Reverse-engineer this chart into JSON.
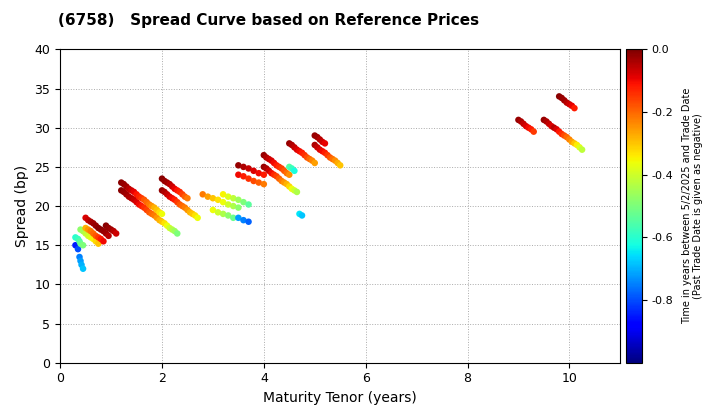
{
  "title": "(6758)   Spread Curve based on Reference Prices",
  "xlabel": "Maturity Tenor (years)",
  "ylabel": "Spread (bp)",
  "colorbar_label": "Time in years between 5/2/2025 and Trade Date\n(Past Trade Date is given as negative)",
  "xlim": [
    0,
    11
  ],
  "ylim": [
    0,
    40
  ],
  "xticks": [
    0,
    2,
    4,
    6,
    8,
    10
  ],
  "yticks": [
    0,
    5,
    10,
    15,
    20,
    25,
    30,
    35,
    40
  ],
  "colorbar_ticks": [
    0.0,
    -0.2,
    -0.4,
    -0.6,
    -0.8
  ],
  "vmin": -1.0,
  "vmax": 0.0,
  "background_color": "#ffffff",
  "point_size": 22,
  "points": [
    [
      0.3,
      15.0,
      -0.85
    ],
    [
      0.35,
      14.5,
      -0.8
    ],
    [
      0.38,
      13.5,
      -0.75
    ],
    [
      0.4,
      13.0,
      -0.72
    ],
    [
      0.42,
      12.5,
      -0.7
    ],
    [
      0.45,
      12.0,
      -0.68
    ],
    [
      0.3,
      16.0,
      -0.6
    ],
    [
      0.35,
      15.8,
      -0.58
    ],
    [
      0.38,
      15.5,
      -0.55
    ],
    [
      0.4,
      15.2,
      -0.52
    ],
    [
      0.45,
      15.0,
      -0.5
    ],
    [
      0.4,
      17.0,
      -0.48
    ],
    [
      0.45,
      16.8,
      -0.45
    ],
    [
      0.5,
      16.5,
      -0.42
    ],
    [
      0.55,
      16.2,
      -0.4
    ],
    [
      0.6,
      16.0,
      -0.38
    ],
    [
      0.65,
      15.8,
      -0.35
    ],
    [
      0.7,
      15.5,
      -0.32
    ],
    [
      0.75,
      15.2,
      -0.3
    ],
    [
      0.5,
      17.2,
      -0.28
    ],
    [
      0.55,
      17.0,
      -0.25
    ],
    [
      0.6,
      16.8,
      -0.22
    ],
    [
      0.65,
      16.5,
      -0.2
    ],
    [
      0.7,
      16.2,
      -0.18
    ],
    [
      0.75,
      16.0,
      -0.15
    ],
    [
      0.8,
      15.8,
      -0.12
    ],
    [
      0.85,
      15.5,
      -0.1
    ],
    [
      0.5,
      18.5,
      -0.08
    ],
    [
      0.55,
      18.2,
      -0.06
    ],
    [
      0.6,
      18.0,
      -0.04
    ],
    [
      0.65,
      17.8,
      -0.03
    ],
    [
      0.7,
      17.5,
      -0.02
    ],
    [
      0.75,
      17.2,
      -0.01
    ],
    [
      0.8,
      17.0,
      -0.01
    ],
    [
      0.85,
      16.8,
      -0.02
    ],
    [
      0.9,
      16.5,
      -0.03
    ],
    [
      0.95,
      16.2,
      -0.05
    ],
    [
      0.9,
      17.5,
      -0.01
    ],
    [
      0.95,
      17.2,
      -0.02
    ],
    [
      1.0,
      17.0,
      -0.03
    ],
    [
      1.05,
      16.8,
      -0.05
    ],
    [
      1.1,
      16.5,
      -0.07
    ],
    [
      1.2,
      22.0,
      -0.01
    ],
    [
      1.25,
      21.8,
      -0.02
    ],
    [
      1.3,
      21.5,
      -0.03
    ],
    [
      1.35,
      21.2,
      -0.04
    ],
    [
      1.4,
      21.0,
      -0.05
    ],
    [
      1.45,
      20.8,
      -0.06
    ],
    [
      1.5,
      20.5,
      -0.08
    ],
    [
      1.55,
      20.2,
      -0.1
    ],
    [
      1.6,
      20.0,
      -0.12
    ],
    [
      1.65,
      19.8,
      -0.14
    ],
    [
      1.7,
      19.5,
      -0.16
    ],
    [
      1.75,
      19.2,
      -0.18
    ],
    [
      1.8,
      19.0,
      -0.2
    ],
    [
      1.85,
      18.8,
      -0.22
    ],
    [
      1.9,
      18.5,
      -0.25
    ],
    [
      1.95,
      18.2,
      -0.28
    ],
    [
      2.0,
      18.0,
      -0.3
    ],
    [
      2.05,
      17.8,
      -0.33
    ],
    [
      2.1,
      17.5,
      -0.36
    ],
    [
      2.15,
      17.2,
      -0.4
    ],
    [
      2.2,
      17.0,
      -0.43
    ],
    [
      2.25,
      16.8,
      -0.46
    ],
    [
      2.3,
      16.5,
      -0.5
    ],
    [
      1.2,
      23.0,
      -0.01
    ],
    [
      1.25,
      22.8,
      -0.02
    ],
    [
      1.3,
      22.5,
      -0.03
    ],
    [
      1.35,
      22.2,
      -0.05
    ],
    [
      1.4,
      22.0,
      -0.07
    ],
    [
      1.45,
      21.8,
      -0.09
    ],
    [
      1.5,
      21.5,
      -0.11
    ],
    [
      1.55,
      21.2,
      -0.13
    ],
    [
      1.6,
      21.0,
      -0.15
    ],
    [
      1.65,
      20.8,
      -0.18
    ],
    [
      1.7,
      20.5,
      -0.2
    ],
    [
      1.75,
      20.2,
      -0.22
    ],
    [
      1.8,
      20.0,
      -0.25
    ],
    [
      1.85,
      19.8,
      -0.28
    ],
    [
      1.9,
      19.5,
      -0.3
    ],
    [
      1.95,
      19.2,
      -0.33
    ],
    [
      2.0,
      19.0,
      -0.36
    ],
    [
      2.0,
      22.0,
      -0.02
    ],
    [
      2.05,
      21.8,
      -0.04
    ],
    [
      2.1,
      21.5,
      -0.06
    ],
    [
      2.15,
      21.2,
      -0.08
    ],
    [
      2.2,
      21.0,
      -0.1
    ],
    [
      2.25,
      20.8,
      -0.12
    ],
    [
      2.3,
      20.5,
      -0.15
    ],
    [
      2.35,
      20.2,
      -0.18
    ],
    [
      2.4,
      20.0,
      -0.2
    ],
    [
      2.45,
      19.8,
      -0.22
    ],
    [
      2.5,
      19.5,
      -0.25
    ],
    [
      2.55,
      19.2,
      -0.28
    ],
    [
      2.6,
      19.0,
      -0.3
    ],
    [
      2.65,
      18.8,
      -0.33
    ],
    [
      2.7,
      18.5,
      -0.36
    ],
    [
      2.0,
      23.5,
      -0.01
    ],
    [
      2.05,
      23.2,
      -0.02
    ],
    [
      2.1,
      23.0,
      -0.03
    ],
    [
      2.15,
      22.8,
      -0.05
    ],
    [
      2.2,
      22.5,
      -0.07
    ],
    [
      2.25,
      22.2,
      -0.09
    ],
    [
      2.3,
      22.0,
      -0.11
    ],
    [
      2.35,
      21.8,
      -0.13
    ],
    [
      2.4,
      21.5,
      -0.16
    ],
    [
      2.45,
      21.2,
      -0.19
    ],
    [
      2.5,
      21.0,
      -0.22
    ],
    [
      2.8,
      21.5,
      -0.22
    ],
    [
      2.9,
      21.2,
      -0.26
    ],
    [
      3.0,
      21.0,
      -0.3
    ],
    [
      3.1,
      20.8,
      -0.33
    ],
    [
      3.2,
      20.5,
      -0.36
    ],
    [
      3.3,
      20.2,
      -0.4
    ],
    [
      3.4,
      20.0,
      -0.44
    ],
    [
      3.5,
      19.8,
      -0.48
    ],
    [
      3.0,
      19.5,
      -0.36
    ],
    [
      3.1,
      19.2,
      -0.4
    ],
    [
      3.2,
      19.0,
      -0.44
    ],
    [
      3.3,
      18.8,
      -0.48
    ],
    [
      3.4,
      18.5,
      -0.52
    ],
    [
      3.2,
      21.5,
      -0.35
    ],
    [
      3.3,
      21.2,
      -0.38
    ],
    [
      3.4,
      21.0,
      -0.42
    ],
    [
      3.5,
      20.8,
      -0.46
    ],
    [
      3.6,
      20.5,
      -0.5
    ],
    [
      3.7,
      20.2,
      -0.54
    ],
    [
      3.5,
      24.0,
      -0.1
    ],
    [
      3.6,
      23.8,
      -0.12
    ],
    [
      3.7,
      23.5,
      -0.14
    ],
    [
      3.8,
      23.2,
      -0.17
    ],
    [
      3.9,
      23.0,
      -0.19
    ],
    [
      4.0,
      22.8,
      -0.22
    ],
    [
      3.5,
      25.2,
      -0.02
    ],
    [
      3.6,
      25.0,
      -0.04
    ],
    [
      3.7,
      24.8,
      -0.06
    ],
    [
      3.8,
      24.5,
      -0.08
    ],
    [
      3.9,
      24.2,
      -0.1
    ],
    [
      4.0,
      24.0,
      -0.12
    ],
    [
      4.0,
      26.5,
      -0.02
    ],
    [
      4.05,
      26.2,
      -0.04
    ],
    [
      4.1,
      26.0,
      -0.06
    ],
    [
      4.15,
      25.8,
      -0.08
    ],
    [
      4.2,
      25.5,
      -0.1
    ],
    [
      4.25,
      25.2,
      -0.12
    ],
    [
      4.3,
      25.0,
      -0.14
    ],
    [
      4.35,
      24.8,
      -0.16
    ],
    [
      4.4,
      24.5,
      -0.18
    ],
    [
      4.45,
      24.2,
      -0.21
    ],
    [
      4.5,
      24.0,
      -0.24
    ],
    [
      4.0,
      25.0,
      -0.02
    ],
    [
      4.05,
      24.8,
      -0.04
    ],
    [
      4.1,
      24.5,
      -0.07
    ],
    [
      4.15,
      24.2,
      -0.1
    ],
    [
      4.2,
      24.0,
      -0.13
    ],
    [
      4.25,
      23.8,
      -0.16
    ],
    [
      4.3,
      23.5,
      -0.19
    ],
    [
      4.35,
      23.2,
      -0.22
    ],
    [
      4.4,
      23.0,
      -0.25
    ],
    [
      4.45,
      22.8,
      -0.28
    ],
    [
      4.5,
      22.5,
      -0.32
    ],
    [
      4.55,
      22.2,
      -0.36
    ],
    [
      4.6,
      22.0,
      -0.4
    ],
    [
      4.65,
      21.8,
      -0.44
    ],
    [
      4.5,
      28.0,
      -0.02
    ],
    [
      4.55,
      27.8,
      -0.04
    ],
    [
      4.6,
      27.5,
      -0.06
    ],
    [
      4.65,
      27.2,
      -0.08
    ],
    [
      4.7,
      27.0,
      -0.1
    ],
    [
      4.75,
      26.8,
      -0.12
    ],
    [
      4.8,
      26.5,
      -0.14
    ],
    [
      4.85,
      26.2,
      -0.17
    ],
    [
      4.9,
      26.0,
      -0.2
    ],
    [
      4.95,
      25.8,
      -0.23
    ],
    [
      5.0,
      25.5,
      -0.26
    ],
    [
      5.0,
      27.8,
      -0.04
    ],
    [
      5.05,
      27.5,
      -0.06
    ],
    [
      5.1,
      27.2,
      -0.08
    ],
    [
      5.15,
      27.0,
      -0.1
    ],
    [
      5.2,
      26.8,
      -0.12
    ],
    [
      5.25,
      26.5,
      -0.15
    ],
    [
      5.3,
      26.2,
      -0.18
    ],
    [
      5.35,
      26.0,
      -0.21
    ],
    [
      5.4,
      25.8,
      -0.24
    ],
    [
      5.45,
      25.5,
      -0.27
    ],
    [
      5.5,
      25.2,
      -0.3
    ],
    [
      5.0,
      29.0,
      -0.02
    ],
    [
      5.05,
      28.8,
      -0.03
    ],
    [
      5.1,
      28.5,
      -0.05
    ],
    [
      5.15,
      28.2,
      -0.07
    ],
    [
      5.2,
      28.0,
      -0.09
    ],
    [
      4.5,
      25.0,
      -0.55
    ],
    [
      4.55,
      24.8,
      -0.58
    ],
    [
      4.6,
      24.5,
      -0.62
    ],
    [
      4.7,
      19.0,
      -0.65
    ],
    [
      4.75,
      18.8,
      -0.68
    ],
    [
      3.5,
      18.5,
      -0.72
    ],
    [
      3.6,
      18.2,
      -0.75
    ],
    [
      3.7,
      18.0,
      -0.78
    ],
    [
      9.0,
      31.0,
      -0.02
    ],
    [
      9.05,
      30.8,
      -0.04
    ],
    [
      9.1,
      30.5,
      -0.06
    ],
    [
      9.15,
      30.2,
      -0.08
    ],
    [
      9.2,
      30.0,
      -0.1
    ],
    [
      9.25,
      29.8,
      -0.12
    ],
    [
      9.3,
      29.5,
      -0.15
    ],
    [
      9.5,
      31.0,
      -0.02
    ],
    [
      9.55,
      30.8,
      -0.04
    ],
    [
      9.6,
      30.5,
      -0.06
    ],
    [
      9.65,
      30.2,
      -0.08
    ],
    [
      9.7,
      30.0,
      -0.05
    ],
    [
      9.75,
      29.8,
      -0.08
    ],
    [
      9.8,
      29.5,
      -0.11
    ],
    [
      9.85,
      29.2,
      -0.14
    ],
    [
      9.9,
      29.0,
      -0.17
    ],
    [
      9.95,
      28.8,
      -0.2
    ],
    [
      10.0,
      28.5,
      -0.23
    ],
    [
      10.05,
      28.2,
      -0.26
    ],
    [
      10.1,
      28.0,
      -0.3
    ],
    [
      10.15,
      27.8,
      -0.34
    ],
    [
      10.2,
      27.5,
      -0.38
    ],
    [
      10.25,
      27.2,
      -0.42
    ],
    [
      9.8,
      34.0,
      -0.01
    ],
    [
      9.85,
      33.8,
      -0.02
    ],
    [
      9.9,
      33.5,
      -0.03
    ],
    [
      9.95,
      33.2,
      -0.05
    ],
    [
      10.0,
      33.0,
      -0.07
    ],
    [
      10.05,
      32.8,
      -0.09
    ],
    [
      10.1,
      32.5,
      -0.12
    ]
  ]
}
